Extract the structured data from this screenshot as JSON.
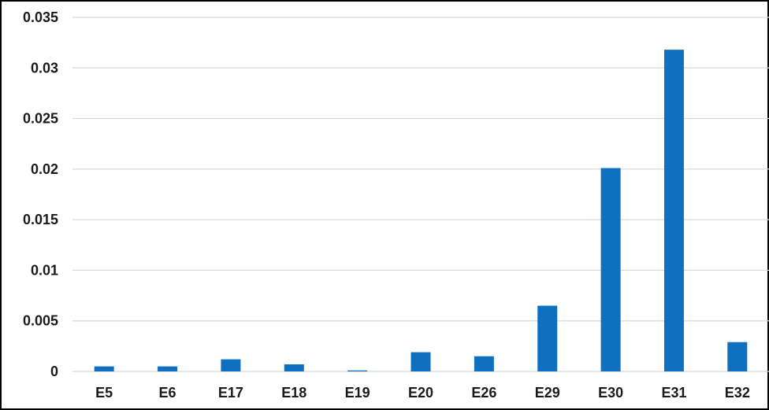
{
  "chart_data": {
    "type": "bar",
    "categories": [
      "E5",
      "E6",
      "E17",
      "E18",
      "E19",
      "E20",
      "E26",
      "E29",
      "E30",
      "E31",
      "E32"
    ],
    "values": [
      0.0005,
      0.0005,
      0.0012,
      0.0007,
      0.0001,
      0.0019,
      0.0015,
      0.0065,
      0.0201,
      0.0318,
      0.0029
    ],
    "ylim": [
      0,
      0.035
    ],
    "yticks": [
      "0",
      "0.005",
      "0.01",
      "0.015",
      "0.02",
      "0.025",
      "0.03",
      "0.035"
    ],
    "title": "",
    "xlabel": "",
    "ylabel": "",
    "grid": true,
    "legend": "none",
    "bar_color": "#1070c0"
  }
}
